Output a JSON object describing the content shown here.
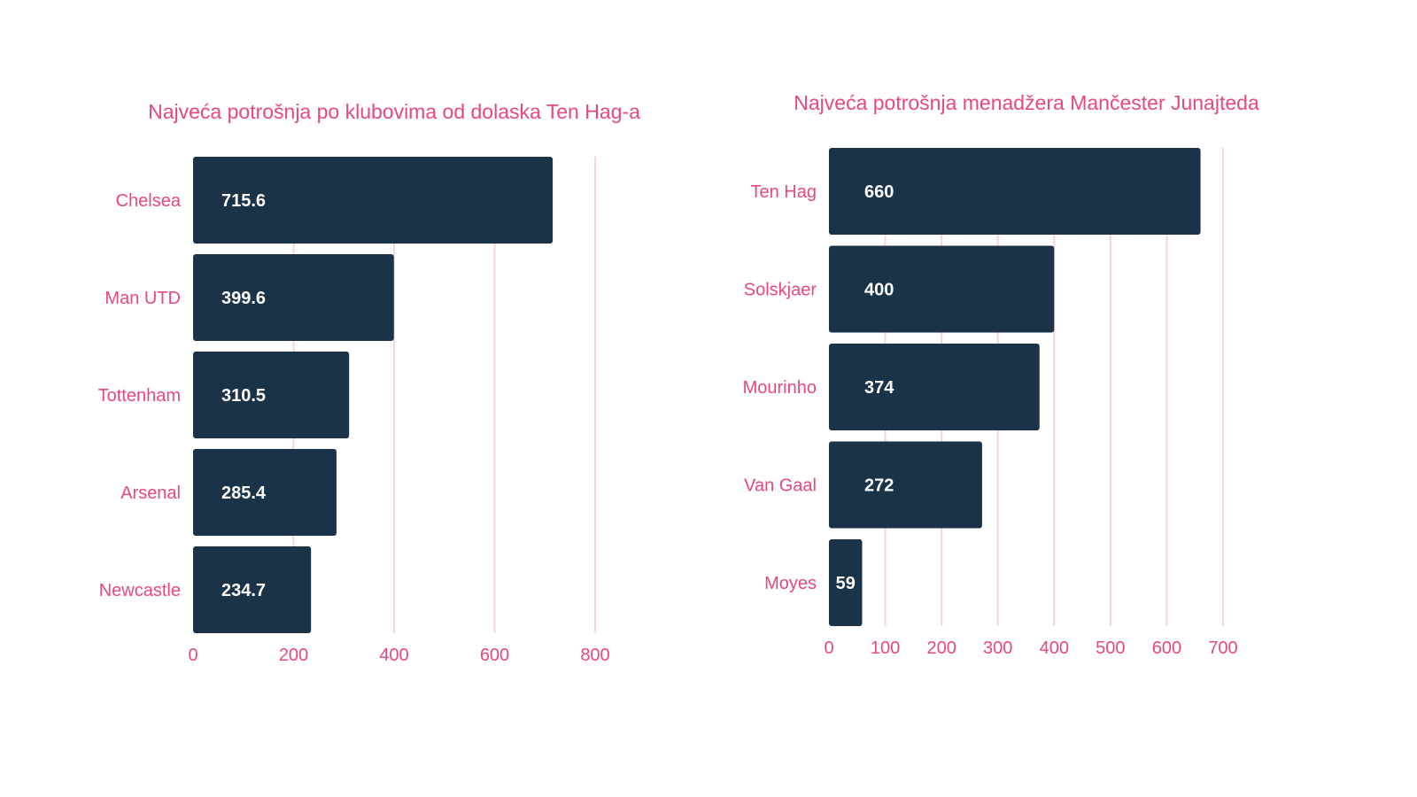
{
  "colors": {
    "bar": "#1b3349",
    "text": "#e8487d",
    "grid": "#f7d3df",
    "value_text": "#ffffff"
  },
  "chart_data": [
    {
      "type": "bar",
      "orientation": "horizontal",
      "title": "Najveća potrošnja po klubovima od dolaska Ten Hag-a",
      "categories": [
        "Chelsea",
        "Man UTD",
        "Tottenham",
        "Arsenal",
        "Newcastle"
      ],
      "values": [
        715.6,
        399.6,
        310.5,
        285.4,
        234.7
      ],
      "value_labels": [
        "715.6",
        "399.6",
        "310.5",
        "285.4",
        "234.7"
      ],
      "xlim": [
        0,
        800
      ],
      "xticks": [
        0,
        200,
        400,
        600,
        800
      ],
      "grid": true
    },
    {
      "type": "bar",
      "orientation": "horizontal",
      "title": "Najveća potrošnja menadžera Mančester Junajteda",
      "categories": [
        "Ten Hag",
        "Solskjaer",
        "Mourinho",
        "Van Gaal",
        "Moyes"
      ],
      "values": [
        660,
        400,
        374,
        272,
        59
      ],
      "value_labels": [
        "660",
        "400",
        "374",
        "272",
        "59"
      ],
      "xlim": [
        0,
        700
      ],
      "xticks": [
        0,
        100,
        200,
        300,
        400,
        500,
        600,
        700
      ],
      "grid": true
    }
  ]
}
